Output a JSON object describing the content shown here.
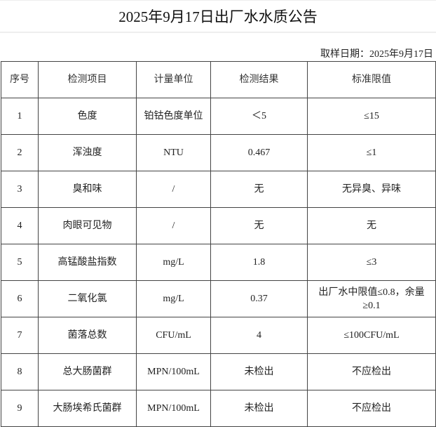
{
  "title": "2025年9月17日出厂水水质公告",
  "sample_date": "取样日期：2025年9月17日",
  "columns": [
    "序号",
    "检测项目",
    "计量单位",
    "检测结果",
    "标准限值"
  ],
  "rows": [
    [
      "1",
      "色度",
      "铂钴色度单位",
      "＜5",
      "≤15"
    ],
    [
      "2",
      "浑浊度",
      "NTU",
      "0.467",
      "≤1"
    ],
    [
      "3",
      "臭和味",
      "/",
      "无",
      "无异臭、异味"
    ],
    [
      "4",
      "肉眼可见物",
      "/",
      "无",
      "无"
    ],
    [
      "5",
      "高锰酸盐指数",
      "mg/L",
      "1.8",
      "≤3"
    ],
    [
      "6",
      "二氧化氯",
      "mg/L",
      "0.37",
      "出厂水中限值≤0.8，余量≥0.1"
    ],
    [
      "7",
      "菌落总数",
      "CFU/mL",
      "4",
      "≤100CFU/mL"
    ],
    [
      "8",
      "总大肠菌群",
      "MPN/100mL",
      "未检出",
      "不应检出"
    ],
    [
      "9",
      "大肠埃希氏菌群",
      "MPN/100mL",
      "未检出",
      "不应检出"
    ]
  ]
}
